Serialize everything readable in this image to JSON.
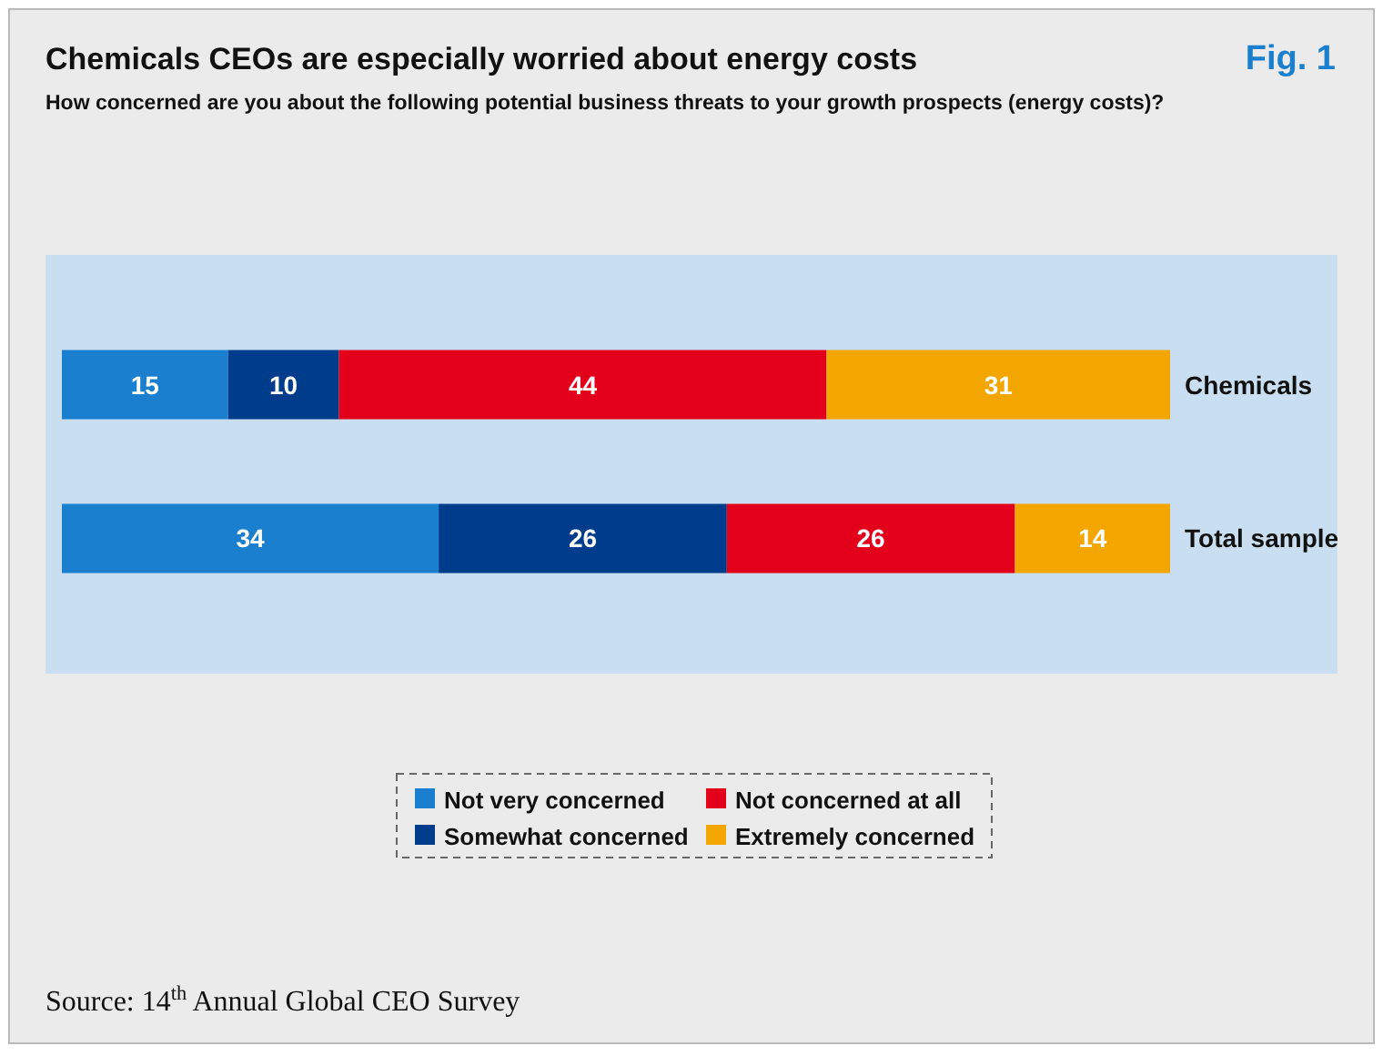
{
  "chart_data": {
    "type": "bar",
    "title": "Chemicals CEOs are especially worried about energy costs",
    "subtitle": "How concerned are you about the following potential business threats to your growth prospects (energy costs)?",
    "orientation": "horizontal",
    "stacked": true,
    "categories": [
      "Chemicals",
      "Total sample"
    ],
    "series": [
      {
        "name": "Not very concerned",
        "color": "#1a7fcf",
        "values": [
          15,
          34
        ]
      },
      {
        "name": "Somewhat concerned",
        "color": "#003c8c",
        "values": [
          10,
          26
        ]
      },
      {
        "name": "Not concerned at all",
        "color": "#e2001a",
        "values": [
          44,
          26
        ]
      },
      {
        "name": "Extremely concerned",
        "color": "#f4a600",
        "values": [
          31,
          14
        ]
      }
    ],
    "data_labels": true,
    "legend": "bottom",
    "annotations": [
      "Fig. 1",
      "Source: 14$^{th}$ Annual Global CEO Survey"
    ]
  }
}
